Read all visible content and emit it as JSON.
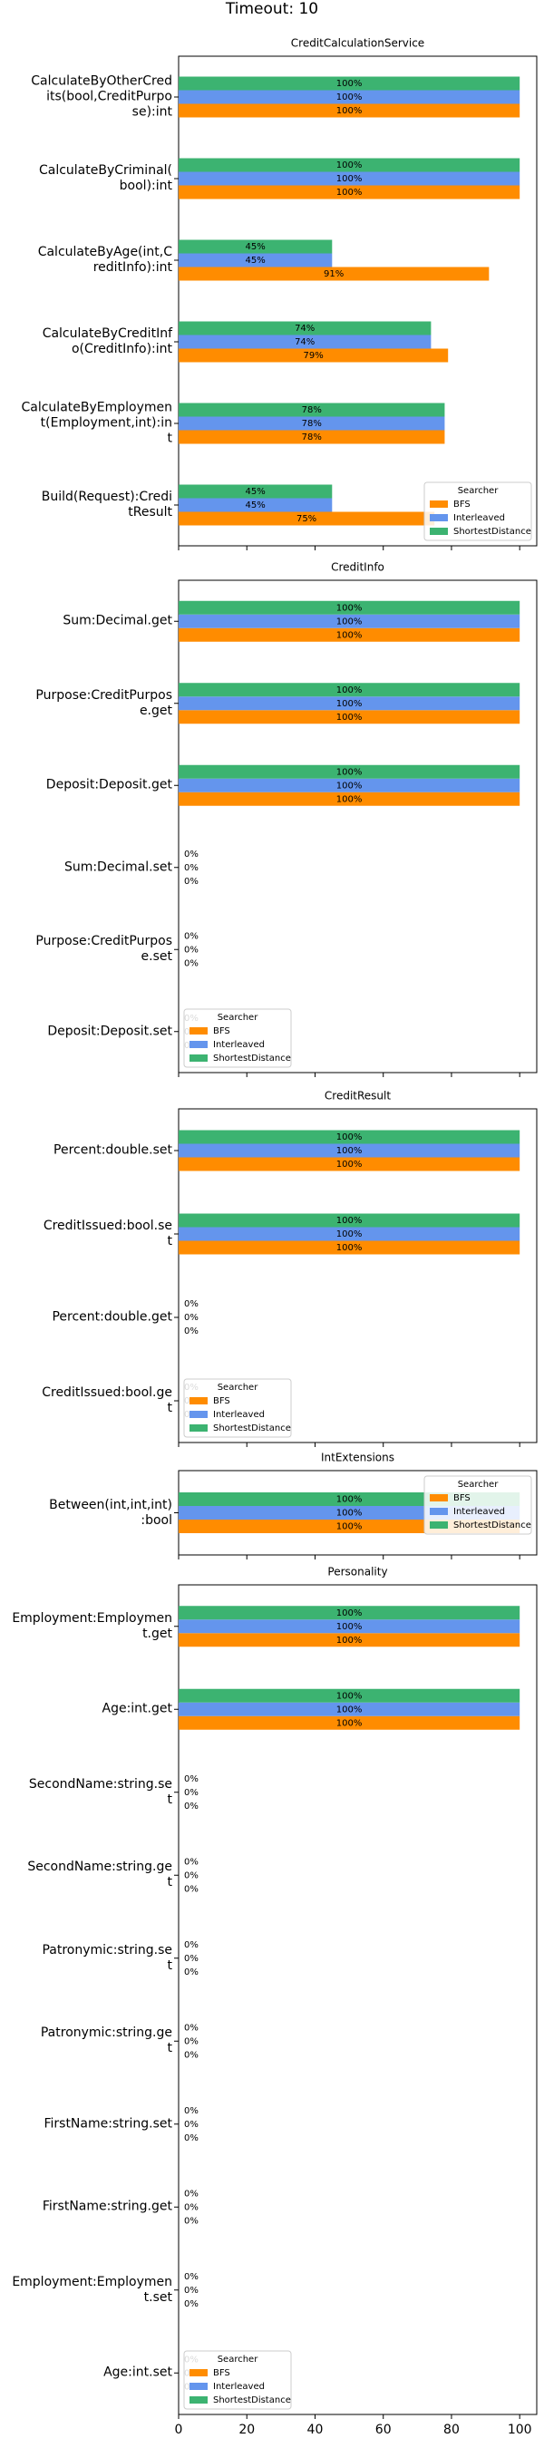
{
  "title": "Timeout: 10",
  "chart_data": [
    {
      "type": "bar",
      "orientation": "horizontal",
      "title": "CreditCalculationService",
      "categories": [
        "CalculateByOtherCred\nits(bool,CreditPurpo\nse):int",
        "CalculateByCriminal(\nbool):int",
        "CalculateByAge(int,C\nreditInfo):int",
        "CalculateByCreditInf\no(CreditInfo):int",
        "CalculateByEmploymen\nt(Employment,int):in\nt",
        "Build(Request):Credi\ntResult"
      ],
      "series": [
        {
          "name": "BFS",
          "color": "#ff8c00",
          "values": [
            100,
            100,
            91,
            79,
            78,
            75
          ],
          "value_labels": [
            "100%",
            "100%",
            "91%",
            "79%",
            "78%",
            "75%"
          ]
        },
        {
          "name": "Interleaved",
          "color": "#6495ed",
          "values": [
            100,
            100,
            45,
            74,
            78,
            45
          ],
          "value_labels": [
            "100%",
            "100%",
            "45%",
            "74%",
            "78%",
            "45%"
          ]
        },
        {
          "name": "ShortestDistance",
          "color": "#3cb371",
          "values": [
            100,
            100,
            45,
            74,
            78,
            45
          ],
          "value_labels": [
            "100%",
            "100%",
            "45%",
            "74%",
            "78%",
            "45%"
          ]
        }
      ],
      "xlim": [
        0,
        105
      ],
      "xticks": [
        0,
        20,
        40,
        60,
        80,
        100
      ],
      "legend_title": "Searcher",
      "legend": "lower right"
    },
    {
      "type": "bar",
      "orientation": "horizontal",
      "title": "CreditInfo",
      "categories": [
        "Sum:Decimal.get",
        "Purpose:CreditPurpos\ne.get",
        "Deposit:Deposit.get",
        "Sum:Decimal.set",
        "Purpose:CreditPurpos\ne.set",
        "Deposit:Deposit.set"
      ],
      "series": [
        {
          "name": "BFS",
          "color": "#ff8c00",
          "values": [
            100,
            100,
            100,
            0,
            0,
            0
          ],
          "value_labels": [
            "100%",
            "100%",
            "100%",
            "0%",
            "0%",
            "0%"
          ]
        },
        {
          "name": "Interleaved",
          "color": "#6495ed",
          "values": [
            100,
            100,
            100,
            0,
            0,
            0
          ],
          "value_labels": [
            "100%",
            "100%",
            "100%",
            "0%",
            "0%",
            "0%"
          ]
        },
        {
          "name": "ShortestDistance",
          "color": "#3cb371",
          "values": [
            100,
            100,
            100,
            0,
            0,
            0
          ],
          "value_labels": [
            "100%",
            "100%",
            "100%",
            "0%",
            "0%",
            "0%"
          ]
        }
      ],
      "xlim": [
        0,
        105
      ],
      "xticks": [
        0,
        20,
        40,
        60,
        80,
        100
      ],
      "legend_title": "Searcher",
      "legend": "lower left"
    },
    {
      "type": "bar",
      "orientation": "horizontal",
      "title": "CreditResult",
      "categories": [
        "Percent:double.set",
        "CreditIssued:bool.se\nt",
        "Percent:double.get",
        "CreditIssued:bool.ge\nt"
      ],
      "series": [
        {
          "name": "BFS",
          "color": "#ff8c00",
          "values": [
            100,
            100,
            0,
            0
          ],
          "value_labels": [
            "100%",
            "100%",
            "0%",
            "0%"
          ]
        },
        {
          "name": "Interleaved",
          "color": "#6495ed",
          "values": [
            100,
            100,
            0,
            0
          ],
          "value_labels": [
            "100%",
            "100%",
            "0%",
            "0%"
          ]
        },
        {
          "name": "ShortestDistance",
          "color": "#3cb371",
          "values": [
            100,
            100,
            0,
            0
          ],
          "value_labels": [
            "100%",
            "100%",
            "0%",
            "0%"
          ]
        }
      ],
      "xlim": [
        0,
        105
      ],
      "xticks": [
        0,
        20,
        40,
        60,
        80,
        100
      ],
      "legend_title": "Searcher",
      "legend": "lower left"
    },
    {
      "type": "bar",
      "orientation": "horizontal",
      "title": "IntExtensions",
      "categories": [
        "Between(int,int,int)\n:bool"
      ],
      "series": [
        {
          "name": "BFS",
          "color": "#ff8c00",
          "values": [
            100
          ],
          "value_labels": [
            "100%"
          ]
        },
        {
          "name": "Interleaved",
          "color": "#6495ed",
          "values": [
            100
          ],
          "value_labels": [
            "100%"
          ]
        },
        {
          "name": "ShortestDistance",
          "color": "#3cb371",
          "values": [
            100
          ],
          "value_labels": [
            "100%"
          ]
        }
      ],
      "xlim": [
        0,
        105
      ],
      "xticks": [
        0,
        20,
        40,
        60,
        80,
        100
      ],
      "legend_title": "Searcher",
      "legend": "upper right"
    },
    {
      "type": "bar",
      "orientation": "horizontal",
      "title": "Personality",
      "categories": [
        "Employment:Employmen\nt.get",
        "Age:int.get",
        "SecondName:string.se\nt",
        "SecondName:string.ge\nt",
        "Patronymic:string.se\nt",
        "Patronymic:string.ge\nt",
        "FirstName:string.set",
        "FirstName:string.get",
        "Employment:Employmen\nt.set",
        "Age:int.set"
      ],
      "series": [
        {
          "name": "BFS",
          "color": "#ff8c00",
          "values": [
            100,
            100,
            0,
            0,
            0,
            0,
            0,
            0,
            0,
            0
          ],
          "value_labels": [
            "100%",
            "100%",
            "0%",
            "0%",
            "0%",
            "0%",
            "0%",
            "0%",
            "0%",
            "0%"
          ]
        },
        {
          "name": "Interleaved",
          "color": "#6495ed",
          "values": [
            100,
            100,
            0,
            0,
            0,
            0,
            0,
            0,
            0,
            0
          ],
          "value_labels": [
            "100%",
            "100%",
            "0%",
            "0%",
            "0%",
            "0%",
            "0%",
            "0%",
            "0%",
            "0%"
          ]
        },
        {
          "name": "ShortestDistance",
          "color": "#3cb371",
          "values": [
            100,
            100,
            0,
            0,
            0,
            0,
            0,
            0,
            0,
            0
          ],
          "value_labels": [
            "100%",
            "100%",
            "0%",
            "0%",
            "0%",
            "0%",
            "0%",
            "0%",
            "0%",
            "0%"
          ]
        }
      ],
      "xlim": [
        0,
        105
      ],
      "xticks": [
        0,
        20,
        40,
        60,
        80,
        100
      ],
      "legend_title": "Searcher",
      "legend": "lower left"
    }
  ]
}
